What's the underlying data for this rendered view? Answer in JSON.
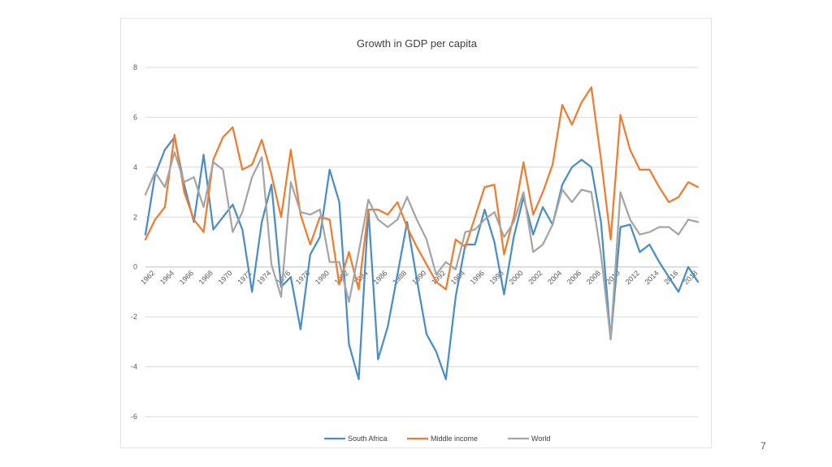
{
  "slide": {
    "page_number": "7"
  },
  "chart_data": {
    "type": "line",
    "title": "Growth in GDP per capita",
    "xlabel": "",
    "ylabel": "",
    "ylim": [
      -6,
      8
    ],
    "y_ticks": [
      "-6",
      "-4",
      "-2",
      "0",
      "2",
      "4",
      "6",
      "8"
    ],
    "x_tick_labels": [
      "1962",
      "1964",
      "1966",
      "1968",
      "1970",
      "1972",
      "1974",
      "1976",
      "1978",
      "1980",
      "1982",
      "1984",
      "1986",
      "1988",
      "1990",
      "1992",
      "1994",
      "1996",
      "1998",
      "2000",
      "2002",
      "2004",
      "2006",
      "2008",
      "2010",
      "2012",
      "2014",
      "2016",
      "2018"
    ],
    "x": [
      1961,
      1962,
      1963,
      1964,
      1965,
      1966,
      1967,
      1968,
      1969,
      1970,
      1971,
      1972,
      1973,
      1974,
      1975,
      1976,
      1977,
      1978,
      1979,
      1980,
      1981,
      1982,
      1983,
      1984,
      1985,
      1986,
      1987,
      1988,
      1989,
      1990,
      1991,
      1992,
      1993,
      1994,
      1995,
      1996,
      1997,
      1998,
      1999,
      2000,
      2001,
      2002,
      2003,
      2004,
      2005,
      2006,
      2007,
      2008,
      2009,
      2010,
      2011,
      2012,
      2013,
      2014,
      2015,
      2016,
      2017,
      2018
    ],
    "grid": true,
    "legend_position": "bottom",
    "series": [
      {
        "name": "South Africa",
        "color": "#4a8ec4",
        "values": [
          1.3,
          3.7,
          4.7,
          5.2,
          3.3,
          1.8,
          4.5,
          1.5,
          2.0,
          2.5,
          1.5,
          -1.0,
          1.8,
          3.3,
          -0.8,
          -0.4,
          -2.5,
          0.5,
          1.2,
          3.9,
          2.6,
          -3.1,
          -4.5,
          2.3,
          -3.7,
          -2.4,
          -0.3,
          1.8,
          -0.5,
          -2.7,
          -3.4,
          -4.5,
          -1.2,
          0.9,
          0.9,
          2.3,
          1.0,
          -1.1,
          1.2,
          2.8,
          1.3,
          2.4,
          1.7,
          3.3,
          4.0,
          4.3,
          4.0,
          1.8,
          -2.9,
          1.6,
          1.7,
          0.6,
          0.9,
          0.2,
          -0.4,
          -1.0,
          0.0,
          -0.6
        ]
      },
      {
        "name": "Middle income",
        "color": "#ed7d31",
        "values": [
          1.1,
          1.9,
          2.4,
          5.3,
          3.0,
          1.9,
          1.4,
          4.3,
          5.2,
          5.6,
          3.9,
          4.1,
          5.1,
          3.7,
          2.0,
          4.7,
          2.1,
          0.9,
          2.0,
          1.9,
          -0.7,
          0.6,
          -0.9,
          2.3,
          2.3,
          2.1,
          2.6,
          1.6,
          0.8,
          0.1,
          -0.6,
          -0.9,
          1.1,
          0.8,
          2.0,
          3.2,
          3.3,
          0.5,
          2.0,
          4.2,
          2.1,
          3.0,
          4.1,
          6.5,
          5.7,
          6.6,
          7.2,
          4.3,
          1.1,
          6.1,
          4.7,
          3.9,
          3.9,
          3.2,
          2.6,
          2.8,
          3.4,
          3.2
        ]
      },
      {
        "name": "World",
        "color": "#a5a5a5",
        "values": [
          2.9,
          3.8,
          3.2,
          4.6,
          3.4,
          3.6,
          2.4,
          4.2,
          3.9,
          1.4,
          2.2,
          3.6,
          4.4,
          0.1,
          -1.2,
          3.4,
          2.2,
          2.1,
          2.3,
          0.2,
          0.2,
          -1.4,
          0.6,
          2.7,
          1.9,
          1.6,
          1.9,
          2.8,
          1.9,
          1.1,
          -0.3,
          0.2,
          -0.1,
          1.4,
          1.5,
          1.9,
          2.2,
          1.2,
          1.8,
          3.0,
          0.6,
          0.9,
          1.7,
          3.1,
          2.6,
          3.1,
          3.0,
          0.5,
          -2.9,
          3.0,
          1.9,
          1.3,
          1.4,
          1.6,
          1.6,
          1.3,
          1.9,
          1.8
        ]
      }
    ]
  }
}
